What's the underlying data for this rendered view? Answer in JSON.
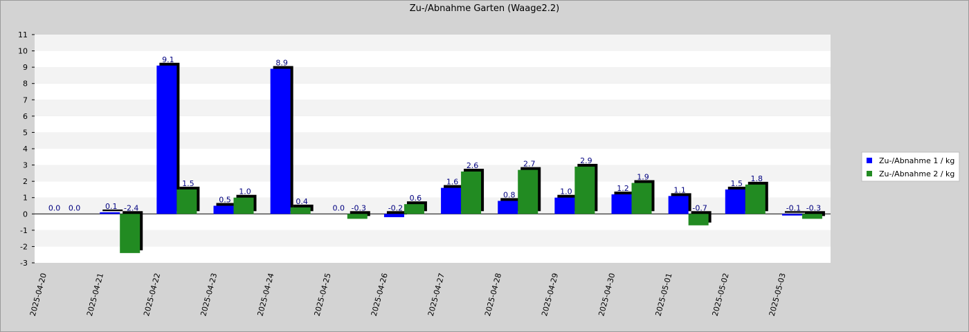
{
  "colors": {
    "background": "#d3d3d3",
    "plot_band_light": "#ffffff",
    "plot_band_dark": "#f3f3f3",
    "series1": "#0000ff",
    "series2": "#228b22",
    "shadow": "#000000",
    "label": "#000080"
  },
  "chart_data": {
    "type": "bar",
    "title": "Zu-/Abnahme Garten (Waage2.2)",
    "xlabel": "",
    "ylabel": "",
    "ylim": [
      -3,
      11
    ],
    "yticks": [
      "-3",
      "-2",
      "-1",
      "0",
      "1",
      "2",
      "3",
      "4",
      "5",
      "6",
      "7",
      "8",
      "9",
      "10",
      "11"
    ],
    "grid": true,
    "legend_position": "right",
    "categories": [
      "2025-04-20",
      "2025-04-21",
      "2025-04-22",
      "2025-04-23",
      "2025-04-24",
      "2025-04-25",
      "2025-04-26",
      "2025-04-27",
      "2025-04-28",
      "2025-04-29",
      "2025-04-30",
      "2025-05-01",
      "2025-05-02",
      "2025-05-03"
    ],
    "series": [
      {
        "name": "Zu-/Abnahme 1 / kg",
        "color": "#0000ff",
        "values": [
          0.0,
          0.1,
          9.1,
          0.5,
          8.9,
          0.0,
          -0.2,
          1.6,
          0.8,
          1.0,
          1.2,
          1.1,
          1.5,
          -0.1
        ],
        "labels": [
          "0.0",
          "0.1",
          "9.1",
          "0.5",
          "8.9",
          "0.0",
          "-0.2",
          "1.6",
          "0.8",
          "1.0",
          "1.2",
          "1.1",
          "1.5",
          "-0.1"
        ]
      },
      {
        "name": "Zu-/Abnahme 2 / kg",
        "color": "#228b22",
        "values": [
          0.0,
          -2.4,
          1.5,
          1.0,
          0.4,
          -0.3,
          0.6,
          2.6,
          2.7,
          2.9,
          1.9,
          -0.7,
          1.8,
          -0.3
        ],
        "labels": [
          "0.0",
          "-2.4",
          "1.5",
          "1.0",
          "0.4",
          "-0.3",
          "0.6",
          "2.6",
          "2.7",
          "2.9",
          "1.9",
          "-0.7",
          "1.8",
          "-0.3"
        ]
      }
    ]
  }
}
